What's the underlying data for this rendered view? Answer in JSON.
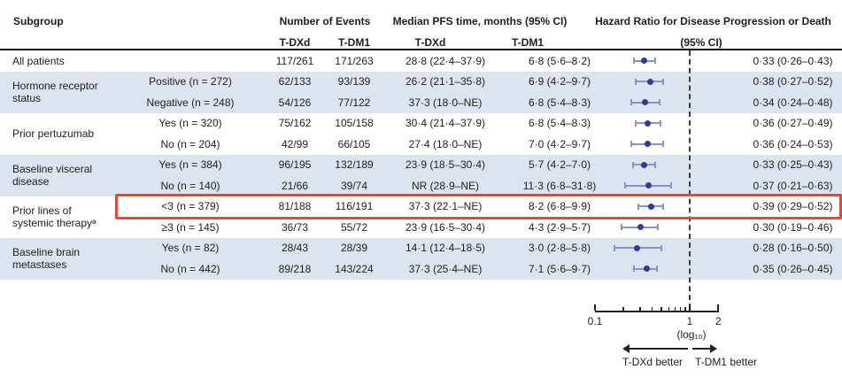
{
  "header": {
    "subgroup": "Subgroup",
    "events": "Number of Events",
    "pfs": "Median PFS time, months (95% CI)",
    "hr_line1": "Hazard Ratio for Disease Progression or Death",
    "hr_line2": "(95% CI)",
    "events_tdxd": "T-DXd",
    "events_tdm1": "T-DM1",
    "pfs_tdxd": "T-DXd",
    "pfs_tdm1": "T-DM1"
  },
  "chart_data": {
    "type": "scatter",
    "subtype": "forest-plot",
    "xscale": "log10",
    "xlim": [
      0.1,
      2
    ],
    "reference_line": 1,
    "x_ticks": [
      0.1,
      0.2,
      0.3,
      0.4,
      0.5,
      0.6,
      0.7,
      0.8,
      0.9,
      1,
      2
    ],
    "x_tick_labels": [
      {
        "value": 0.1,
        "label": "0.1"
      },
      {
        "value": 1,
        "label": "1"
      },
      {
        "value": 2,
        "label": "2"
      }
    ],
    "axis_note": "(log₁₀)",
    "direction_left": "T-DXd better",
    "direction_right": "T-DM1 better",
    "groups": [
      {
        "label_lines": [
          "All patients"
        ],
        "shaded": false,
        "rows": [
          {
            "subgroup": "",
            "ev_tdxd": "117/261",
            "ev_tdm1": "171/263",
            "pfs_tdxd": "28·8 (22·4–37·9)",
            "pfs_tdm1": "6·8 (5·6–8·2)",
            "hr": 0.33,
            "lo": 0.26,
            "hi": 0.43,
            "hr_text": "0·33 (0·26–0·43)",
            "highlight": false
          }
        ]
      },
      {
        "label_lines": [
          "Hormone receptor",
          "status"
        ],
        "shaded": true,
        "rows": [
          {
            "subgroup": "Positive (n = 272)",
            "ev_tdxd": "62/133",
            "ev_tdm1": "93/139",
            "pfs_tdxd": "26·2 (21·1–35·8)",
            "pfs_tdm1": "6·9 (4·2–9·7)",
            "hr": 0.38,
            "lo": 0.27,
            "hi": 0.52,
            "hr_text": "0·38 (0·27–0·52)",
            "highlight": false
          },
          {
            "subgroup": "Negative (n = 248)",
            "ev_tdxd": "54/126",
            "ev_tdm1": "77/122",
            "pfs_tdxd": "37·3 (18·0–NE)",
            "pfs_tdm1": "6·8 (5·4–8·3)",
            "hr": 0.34,
            "lo": 0.24,
            "hi": 0.48,
            "hr_text": "0·34 (0·24–0·48)",
            "highlight": false
          }
        ]
      },
      {
        "label_lines": [
          "Prior pertuzumab"
        ],
        "shaded": false,
        "rows": [
          {
            "subgroup": "Yes (n = 320)",
            "ev_tdxd": "75/162",
            "ev_tdm1": "105/158",
            "pfs_tdxd": "30·4 (21·4–37·9)",
            "pfs_tdm1": "6·8 (5·4–8·3)",
            "hr": 0.36,
            "lo": 0.27,
            "hi": 0.49,
            "hr_text": "0·36 (0·27–0·49)",
            "highlight": false
          },
          {
            "subgroup": "No (n = 204)",
            "ev_tdxd": "42/99",
            "ev_tdm1": "66/105",
            "pfs_tdxd": "27·4 (18·0–NE)",
            "pfs_tdm1": "7·0 (4·2–9·7)",
            "hr": 0.36,
            "lo": 0.24,
            "hi": 0.53,
            "hr_text": "0·36 (0·24–0·53)",
            "highlight": false
          }
        ]
      },
      {
        "label_lines": [
          "Baseline visceral",
          "disease"
        ],
        "shaded": true,
        "rows": [
          {
            "subgroup": "Yes (n = 384)",
            "ev_tdxd": "96/195",
            "ev_tdm1": "132/189",
            "pfs_tdxd": "23·9 (18·5–30·4)",
            "pfs_tdm1": "5·7 (4·2–7·0)",
            "hr": 0.33,
            "lo": 0.25,
            "hi": 0.43,
            "hr_text": "0·33 (0·25–0·43)",
            "highlight": false
          },
          {
            "subgroup": "No (n = 140)",
            "ev_tdxd": "21/66",
            "ev_tdm1": "39/74",
            "pfs_tdxd": "NR (28·9–NE)",
            "pfs_tdm1": "11·3 (6·8–31·8)",
            "hr": 0.37,
            "lo": 0.21,
            "hi": 0.63,
            "hr_text": "0·37 (0·21–0·63)",
            "highlight": false
          }
        ]
      },
      {
        "label_lines": [
          "Prior lines of",
          "systemic therapyᵃ"
        ],
        "shaded": false,
        "rows": [
          {
            "subgroup": "<3 (n = 379)",
            "ev_tdxd": "81/188",
            "ev_tdm1": "116/191",
            "pfs_tdxd": "37·3 (22·1–NE)",
            "pfs_tdm1": "8·2 (6·8–9·9)",
            "hr": 0.39,
            "lo": 0.29,
            "hi": 0.52,
            "hr_text": "0·39 (0·29–0·52)",
            "highlight": true
          },
          {
            "subgroup": "≥3 (n = 145)",
            "ev_tdxd": "36/73",
            "ev_tdm1": "55/72",
            "pfs_tdxd": "23·9 (16·5–30·4)",
            "pfs_tdm1": "4·3 (2·9–5·7)",
            "hr": 0.3,
            "lo": 0.19,
            "hi": 0.46,
            "hr_text": "0·30 (0·19–0·46)",
            "highlight": false
          }
        ]
      },
      {
        "label_lines": [
          "Baseline brain",
          "metastases"
        ],
        "shaded": true,
        "rows": [
          {
            "subgroup": "Yes (n = 82)",
            "ev_tdxd": "28/43",
            "ev_tdm1": "28/39",
            "pfs_tdxd": "14·1 (12·4–18·5)",
            "pfs_tdm1": "3·0 (2·8–5·8)",
            "hr": 0.28,
            "lo": 0.16,
            "hi": 0.5,
            "hr_text": "0·28 (0·16–0·50)",
            "highlight": false
          },
          {
            "subgroup": "No (n = 442)",
            "ev_tdxd": "89/218",
            "ev_tdm1": "143/224",
            "pfs_tdxd": "37·3 (25·4–NE)",
            "pfs_tdm1": "7·1 (5·6–9·7)",
            "hr": 0.35,
            "lo": 0.26,
            "hi": 0.45,
            "hr_text": "0·35 (0·26–0·45)",
            "highlight": false
          }
        ]
      }
    ]
  },
  "colors": {
    "dot": "#2e3e93",
    "error_bar": "#8b93c9",
    "row_shade": "#dbe4ef",
    "highlight_border": "#e8433c",
    "reference_line": "#3c3c3c",
    "text": "#1e1e1e"
  }
}
